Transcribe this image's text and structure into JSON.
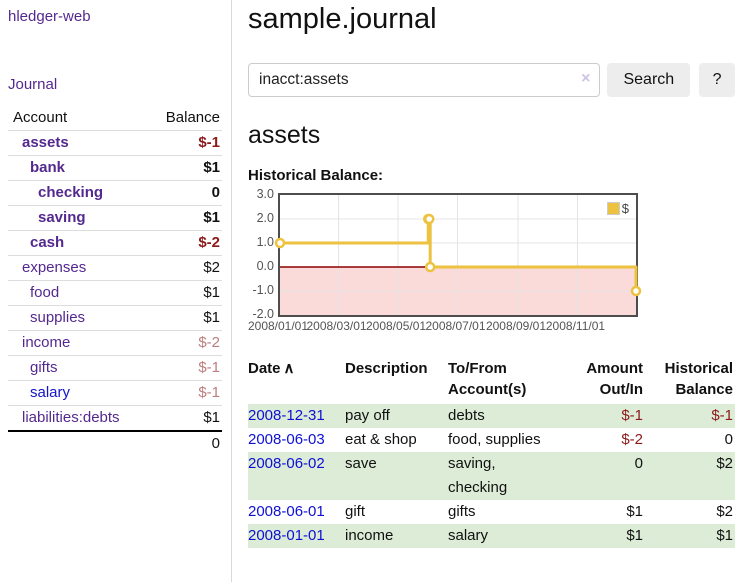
{
  "app": {
    "title": "hledger-web",
    "journal_link": "Journal"
  },
  "sidebar": {
    "columns": {
      "account": "Account",
      "balance": "Balance"
    },
    "accounts": [
      {
        "name": "assets",
        "balance": "$-1"
      },
      {
        "name": "bank",
        "balance": "$1"
      },
      {
        "name": "checking",
        "balance": "0"
      },
      {
        "name": "saving",
        "balance": "$1"
      },
      {
        "name": "cash",
        "balance": "$-2"
      },
      {
        "name": "expenses",
        "balance": "$2"
      },
      {
        "name": "food",
        "balance": "$1"
      },
      {
        "name": "supplies",
        "balance": "$1"
      },
      {
        "name": "income",
        "balance": "$-2"
      },
      {
        "name": "gifts",
        "balance": "$-1"
      },
      {
        "name": "salary",
        "balance": "$-1"
      },
      {
        "name": "liabilities:debts",
        "balance": "$1"
      }
    ],
    "total": "0"
  },
  "main": {
    "title": "sample.journal",
    "search": {
      "value": "inacct:assets",
      "clear_icon": "×",
      "search_button": "Search",
      "help_button": "?"
    },
    "account_heading": "assets",
    "chart_heading": "Historical Balance:"
  },
  "chart_data": {
    "type": "line",
    "step": true,
    "title": "Historical Balance:",
    "series": [
      {
        "name": "$",
        "color": "#EDC240",
        "points": [
          [
            "2008-01-01",
            1
          ],
          [
            "2008-06-01",
            2
          ],
          [
            "2008-06-02",
            2
          ],
          [
            "2008-06-03",
            0
          ],
          [
            "2008-12-31",
            -1
          ]
        ]
      }
    ],
    "x_range": [
      "2008-01-01",
      "2008-12-31"
    ],
    "ylim": [
      -2,
      3
    ],
    "x_ticks": [
      "2008/01/01",
      "2008/03/01",
      "2008/05/01",
      "2008/07/01",
      "2008/09/01",
      "2008/11/01"
    ],
    "y_ticks": [
      3,
      2,
      1,
      0,
      -1,
      -2
    ],
    "grid": true,
    "legend_position": "top-right",
    "negative_fill": "#fbdada",
    "zero_line_color": "#8b0000",
    "marker_style": "open-circle"
  },
  "register": {
    "headers": {
      "date": "Date",
      "sort_arrow": "∧",
      "description": "Description",
      "accounts": "To/From Account(s)",
      "amount": "Amount Out/In",
      "balance": "Historical Balance"
    },
    "rows": [
      {
        "date": "2008-12-31",
        "description": "pay off",
        "accounts": "debts",
        "amount": "$-1",
        "balance": "$-1"
      },
      {
        "date": "2008-06-03",
        "description": "eat & shop",
        "accounts": "food, supplies",
        "amount": "$-2",
        "balance": "0"
      },
      {
        "date": "2008-06-02",
        "description": "save",
        "accounts": "saving, checking",
        "amount": "0",
        "balance": "$2"
      },
      {
        "date": "2008-06-01",
        "description": "gift",
        "accounts": "gifts",
        "amount": "$1",
        "balance": "$2"
      },
      {
        "date": "2008-01-01",
        "description": "income",
        "accounts": "salary",
        "amount": "$1",
        "balance": "$1"
      }
    ]
  }
}
